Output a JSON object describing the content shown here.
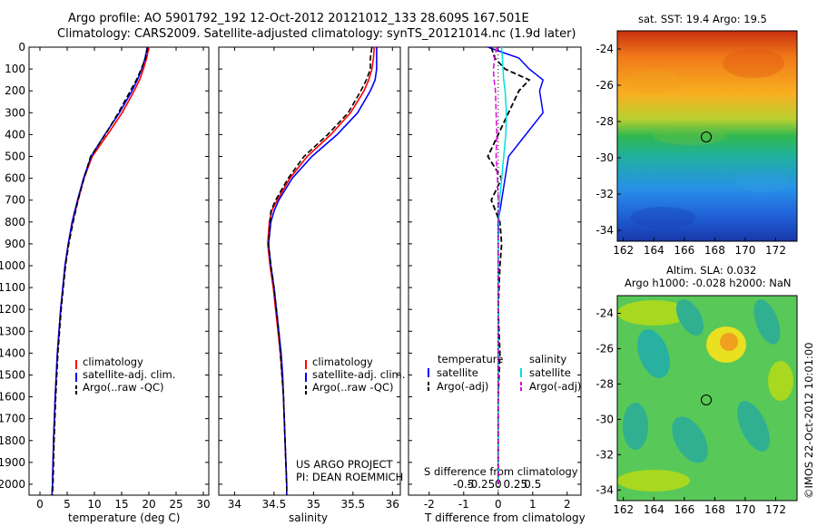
{
  "header": {
    "line1": "Argo profile: AO 5901792_192 12-Oct-2012 20121012_133 28.609S 167.501E",
    "line2": "Climatology: CARS2009. Satellite-adjusted climatology: synTS_20121014.nc (1.9d later)"
  },
  "colors": {
    "climatology": "#ff0000",
    "satellite": "#0000ff",
    "argo": "#000000",
    "satellite_salinity": "#00e0e0",
    "argo_salinity": "#e000e0"
  },
  "depth_axis": {
    "ticks": [
      "0",
      "100",
      "200",
      "300",
      "400",
      "500",
      "600",
      "700",
      "800",
      "900",
      "1000",
      "1100",
      "1200",
      "1300",
      "1400",
      "1500",
      "1600",
      "1700",
      "1800",
      "1900",
      "2000"
    ]
  },
  "temp_panel": {
    "xlabel": "temperature (deg C)",
    "xticks": [
      "0",
      "5",
      "10",
      "15",
      "20",
      "25",
      "30"
    ],
    "legend": [
      "climatology",
      "satellite-adj. clim.",
      "Argo(..raw -QC)"
    ]
  },
  "sal_panel": {
    "xlabel": "salinity",
    "xticks": [
      "34",
      "34.5",
      "35",
      "35.5",
      "36"
    ],
    "legend": [
      "climatology",
      "satellite-adj. clim.",
      "Argo(..raw -QC)"
    ],
    "credit1": "US ARGO PROJECT",
    "credit2": "PI: DEAN ROEMMICH"
  },
  "diff_panel": {
    "xlabel": "T difference from climatology",
    "xticks": [
      "-2",
      "-1",
      "0",
      "1",
      "2"
    ],
    "s_label": "S difference from climatology",
    "s_ticks": [
      "-0.5",
      "-0.25",
      "0",
      "0.25",
      "0.5"
    ],
    "legend_head_t": "temperature",
    "legend_head_s": "salinity",
    "legend_t": [
      "satellite",
      "Argo(-adj)"
    ],
    "legend_s": [
      "satellite",
      "Argo(-adj)"
    ]
  },
  "sst_map": {
    "title": "sat. SST: 19.4  Argo: 19.5",
    "yticks": [
      "-24",
      "-26",
      "-28",
      "-30",
      "-32",
      "-34"
    ],
    "xticks": [
      "162",
      "164",
      "166",
      "168",
      "170",
      "172"
    ]
  },
  "sla_map": {
    "title1": "Altim. SLA: 0.032",
    "title2": "Argo h1000: -0.028 h2000: NaN",
    "yticks": [
      "-24",
      "-26",
      "-28",
      "-30",
      "-32",
      "-34"
    ],
    "xticks": [
      "162",
      "164",
      "166",
      "168",
      "170",
      "172"
    ]
  },
  "side_label": "©IMOS 22-Oct-2012 10:01:00",
  "chart_data": [
    {
      "type": "line",
      "title": "",
      "xlabel": "temperature (deg C)",
      "ylabel": "",
      "xlim": [
        -2,
        31
      ],
      "ylim": [
        2050,
        0
      ],
      "y": [
        0,
        50,
        100,
        150,
        200,
        300,
        400,
        500,
        600,
        700,
        800,
        900,
        1000,
        1200,
        1400,
        1600,
        1800,
        2000,
        2050
      ],
      "series": [
        {
          "name": "climatology",
          "values": [
            20.0,
            19.6,
            19.0,
            18.3,
            17.3,
            15.1,
            12.4,
            9.6,
            8.1,
            7.0,
            6.0,
            5.2,
            4.6,
            3.8,
            3.2,
            2.8,
            2.5,
            2.3,
            2.2
          ]
        },
        {
          "name": "satellite-adj. clim.",
          "values": [
            19.7,
            19.3,
            18.7,
            17.9,
            16.9,
            14.6,
            11.9,
            9.4,
            8.0,
            6.9,
            5.9,
            5.2,
            4.6,
            3.8,
            3.2,
            2.8,
            2.5,
            2.3,
            2.2
          ]
        },
        {
          "name": "Argo(..raw -QC)",
          "values": [
            19.8,
            19.4,
            18.6,
            17.7,
            16.6,
            14.4,
            12.0,
            9.3,
            8.1,
            7.0,
            6.1,
            5.3,
            4.7,
            3.9,
            3.3,
            2.9,
            2.6,
            2.4,
            2.3
          ]
        }
      ]
    },
    {
      "type": "line",
      "title": "",
      "xlabel": "salinity",
      "ylabel": "",
      "xlim": [
        33.8,
        36.1
      ],
      "ylim": [
        2050,
        0
      ],
      "y": [
        0,
        50,
        100,
        150,
        200,
        300,
        400,
        500,
        600,
        700,
        750,
        800,
        900,
        1000,
        1100,
        1200,
        1300,
        1400,
        1500,
        1600,
        1800,
        2000,
        2050
      ],
      "series": [
        {
          "name": "climatology",
          "values": [
            35.77,
            35.76,
            35.74,
            35.7,
            35.64,
            35.47,
            35.22,
            34.92,
            34.7,
            34.54,
            34.47,
            34.44,
            34.42,
            34.45,
            34.49,
            34.52,
            34.55,
            34.58,
            34.6,
            34.62,
            34.64,
            34.66,
            34.66
          ]
        },
        {
          "name": "satellite-adj. clim.",
          "values": [
            35.8,
            35.8,
            35.8,
            35.78,
            35.72,
            35.56,
            35.3,
            34.98,
            34.73,
            34.56,
            34.5,
            34.46,
            34.43,
            34.46,
            34.5,
            34.53,
            34.56,
            34.59,
            34.61,
            34.62,
            34.64,
            34.66,
            34.66
          ]
        },
        {
          "name": "Argo(..raw -QC)",
          "values": [
            35.74,
            35.72,
            35.72,
            35.67,
            35.6,
            35.44,
            35.18,
            34.88,
            34.68,
            34.52,
            34.46,
            34.45,
            34.43,
            34.46,
            34.5,
            34.53,
            34.56,
            34.58,
            34.6,
            34.62,
            34.64,
            34.66,
            34.66
          ]
        }
      ]
    },
    {
      "type": "line",
      "title": "",
      "xlabel": "T difference from climatology",
      "ylabel": "",
      "xlim": [
        -2.6,
        2.4
      ],
      "ylim": [
        2050,
        0
      ],
      "y": [
        0,
        50,
        100,
        150,
        200,
        300,
        400,
        500,
        600,
        700,
        800,
        900,
        1000,
        1200,
        1400,
        1600,
        1800,
        2000
      ],
      "series": [
        {
          "name": "temperature satellite",
          "values": [
            -0.3,
            0.6,
            0.9,
            1.3,
            1.2,
            1.3,
            0.8,
            0.3,
            0.2,
            0.1,
            0.0,
            0.0,
            0.0,
            0.0,
            0.0,
            0.0,
            0.0,
            0.0
          ]
        },
        {
          "name": "temperature Argo(-adj)",
          "values": [
            -0.2,
            -0.1,
            0.2,
            0.9,
            0.6,
            0.3,
            0.0,
            -0.3,
            0.1,
            -0.2,
            0.05,
            0.1,
            0.05,
            0.0,
            0.05,
            0.0,
            0.0,
            0.0
          ]
        },
        {
          "name": "salinity satellite",
          "values": [
            0.05,
            0.06,
            0.07,
            0.08,
            0.1,
            0.12,
            0.11,
            0.08,
            0.05,
            0.02,
            0.01,
            0.0,
            0.0,
            0.0,
            0.0,
            0.0,
            0.0,
            0.0
          ]
        },
        {
          "name": "salinity Argo(-adj)",
          "values": [
            -0.02,
            -0.05,
            -0.07,
            -0.06,
            -0.04,
            -0.03,
            -0.02,
            -0.03,
            -0.01,
            0.0,
            0.0,
            0.0,
            0.0,
            0.0,
            0.0,
            0.0,
            0.0,
            0.0
          ]
        }
      ]
    }
  ]
}
